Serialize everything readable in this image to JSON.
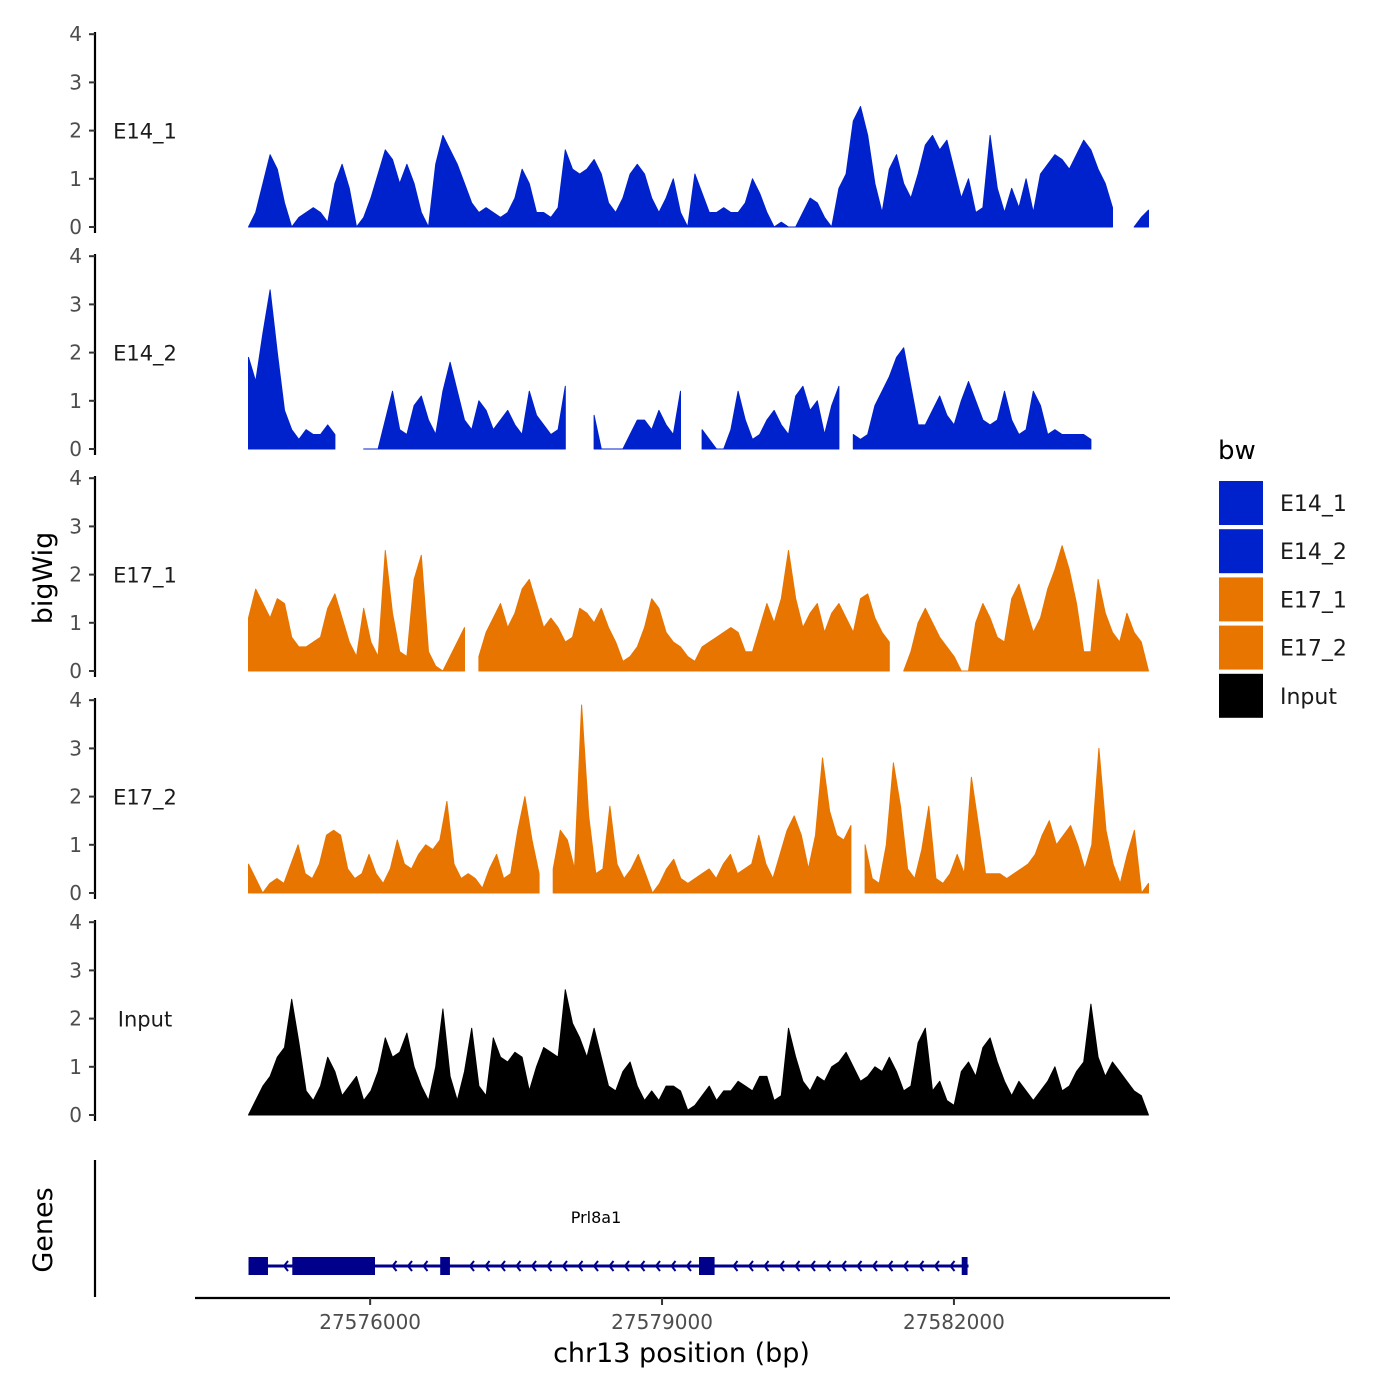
{
  "chart_data": {
    "type": "area",
    "title": "",
    "xlabel": "chr13 position (bp)",
    "ylabel": "bigWig",
    "genes_label": "Genes",
    "xlim": [
      27574200,
      27584200
    ],
    "ylim": [
      0,
      4
    ],
    "x_ticks": [
      27576000,
      27579000,
      27582000
    ],
    "x_tick_labels": [
      "27576000",
      "27579000",
      "27582000"
    ],
    "y_ticks": [
      0,
      1,
      2,
      3,
      4
    ],
    "y_tick_labels": [
      "0",
      "1",
      "2",
      "3",
      "4"
    ],
    "legend": {
      "title": "bw",
      "position": "right",
      "entries": [
        {
          "label": "E14_1",
          "color": "#0022CC"
        },
        {
          "label": "E14_2",
          "color": "#0022CC"
        },
        {
          "label": "E17_1",
          "color": "#E87500"
        },
        {
          "label": "E17_2",
          "color": "#E87500"
        },
        {
          "label": "Input",
          "color": "#000000"
        }
      ]
    },
    "series": [
      {
        "name": "E14_1",
        "color": "#0022CC",
        "x_start": 27574750,
        "x_end": 27584000,
        "values": [
          0,
          0.3,
          0.9,
          1.5,
          1.2,
          0.5,
          0,
          0.2,
          0.3,
          0.4,
          0.3,
          0.1,
          0.9,
          1.3,
          0.8,
          0,
          0.2,
          0.6,
          1.1,
          1.6,
          1.4,
          0.9,
          1.3,
          0.9,
          0.3,
          0,
          1.3,
          1.9,
          1.6,
          1.3,
          0.9,
          0.5,
          0.3,
          0.4,
          0.3,
          0.2,
          0.3,
          0.6,
          1.2,
          0.9,
          0.3,
          0.3,
          0.2,
          0.4,
          1.6,
          1.2,
          1.1,
          1.2,
          1.4,
          1.1,
          0.5,
          0.3,
          0.6,
          1.1,
          1.3,
          1.1,
          0.6,
          0.3,
          0.6,
          1.0,
          0.3,
          0,
          1.1,
          0.7,
          0.3,
          0.3,
          0.4,
          0.3,
          0.3,
          0.5,
          1.0,
          0.7,
          0.3,
          0,
          0.1,
          0,
          0,
          0.3,
          0.6,
          0.5,
          0.2,
          0,
          0.8,
          1.1,
          2.2,
          2.5,
          1.9,
          0.9,
          0.3,
          1.2,
          1.5,
          0.9,
          0.6,
          1.1,
          1.7,
          1.9,
          1.6,
          1.8,
          1.2,
          0.6,
          1.0,
          0.3,
          0.4,
          1.9,
          0.8,
          0.3,
          0.8,
          0.4,
          1.0,
          0.3,
          1.1,
          1.3,
          1.5,
          1.4,
          1.2,
          1.5,
          1.8,
          1.6,
          1.2,
          0.9,
          0.4,
          0.3,
          0,
          0,
          0.2,
          0.35
        ],
        "gaps": [
          [
            27583650,
            27583780
          ]
        ]
      },
      {
        "name": "E14_2",
        "color": "#0022CC",
        "x_start": 27574750,
        "x_end": 27584000,
        "values": [
          1.9,
          1.4,
          2.4,
          3.3,
          2.0,
          0.8,
          0.4,
          0.2,
          0.4,
          0.3,
          0.3,
          0.5,
          0.3,
          0.2,
          0.5,
          0,
          0,
          0,
          0,
          0.6,
          1.2,
          0.4,
          0.3,
          0.9,
          1.1,
          0.6,
          0.3,
          1.2,
          1.8,
          1.2,
          0.6,
          0.4,
          1.0,
          0.8,
          0.4,
          0.6,
          0.8,
          0.5,
          0.3,
          1.2,
          0.7,
          0.5,
          0.3,
          0.4,
          1.3,
          1.1,
          1.2,
          1.2,
          0.7,
          0,
          0,
          0,
          0,
          0.3,
          0.6,
          0.6,
          0.4,
          0.8,
          0.5,
          0.3,
          1.2,
          1.9,
          1.0,
          0.4,
          0.2,
          0,
          0,
          0.4,
          1.2,
          0.6,
          0.2,
          0.3,
          0.6,
          0.8,
          0.5,
          0.3,
          1.1,
          1.3,
          0.8,
          1.0,
          0.3,
          0.9,
          1.3,
          0.7,
          0.3,
          0.2,
          0.3,
          0.9,
          1.2,
          1.5,
          1.9,
          2.1,
          1.3,
          0.5,
          0.5,
          0.8,
          1.1,
          0.7,
          0.5,
          1.0,
          1.4,
          1.0,
          0.6,
          0.5,
          0.6,
          1.2,
          0.6,
          0.3,
          0.4,
          1.2,
          0.9,
          0.3,
          0.4,
          0.3,
          0.3,
          0.3,
          0.3,
          0.2,
          0.2,
          0.2,
          0.2,
          0.1,
          0,
          0,
          0,
          0
        ],
        "gaps": [
          [
            27575270,
            27575310
          ],
          [
            27575710,
            27575920
          ],
          [
            27578070,
            27578290
          ],
          [
            27579230,
            27579390
          ],
          [
            27580880,
            27580920
          ],
          [
            27583450,
            27584100
          ]
        ]
      },
      {
        "name": "E17_1",
        "color": "#E87500",
        "x_start": 27574750,
        "x_end": 27584000,
        "values": [
          1.1,
          1.7,
          1.4,
          1.1,
          1.5,
          1.4,
          0.7,
          0.5,
          0.5,
          0.6,
          0.7,
          1.3,
          1.6,
          1.1,
          0.6,
          0.3,
          1.3,
          0.6,
          0.3,
          2.5,
          1.2,
          0.4,
          0.3,
          1.9,
          2.4,
          0.4,
          0.1,
          0,
          0.3,
          0.6,
          0.9,
          0.5,
          0.3,
          0.8,
          1.1,
          1.4,
          0.9,
          1.2,
          1.7,
          1.9,
          1.4,
          0.9,
          1.1,
          0.9,
          0.6,
          0.7,
          1.3,
          1.2,
          1.0,
          1.3,
          0.9,
          0.6,
          0.2,
          0.3,
          0.5,
          0.9,
          1.5,
          1.3,
          0.8,
          0.6,
          0.5,
          0.3,
          0.2,
          0.5,
          0.6,
          0.7,
          0.8,
          0.9,
          0.8,
          0.4,
          0.4,
          0.9,
          1.4,
          1.0,
          1.5,
          2.5,
          1.5,
          0.9,
          1.2,
          1.4,
          0.8,
          1.2,
          1.4,
          1.1,
          0.8,
          1.5,
          1.6,
          1.1,
          0.8,
          0.6,
          0.4,
          0,
          0.4,
          1.0,
          1.3,
          1.0,
          0.7,
          0.5,
          0.3,
          0,
          0,
          1.0,
          1.4,
          1.1,
          0.7,
          0.6,
          1.5,
          1.8,
          1.3,
          0.8,
          1.1,
          1.7,
          2.1,
          2.6,
          2.1,
          1.4,
          0.4,
          0.4,
          1.9,
          1.2,
          0.8,
          0.6,
          1.2,
          0.8,
          0.6,
          0
        ],
        "gaps": [
          [
            27577000,
            27577060
          ],
          [
            27581350,
            27581480
          ]
        ]
      },
      {
        "name": "E17_2",
        "color": "#E87500",
        "x_start": 27574750,
        "x_end": 27584000,
        "values": [
          0.6,
          0.3,
          0,
          0.2,
          0.3,
          0.2,
          0.6,
          1.0,
          0.4,
          0.3,
          0.6,
          1.2,
          1.3,
          1.2,
          0.5,
          0.3,
          0.4,
          0.8,
          0.4,
          0.2,
          0.5,
          1.1,
          0.6,
          0.5,
          0.8,
          1.0,
          0.9,
          1.1,
          1.9,
          0.6,
          0.3,
          0.4,
          0.3,
          0.1,
          0.5,
          0.8,
          0.3,
          0.4,
          1.3,
          2.0,
          1.1,
          0.4,
          0.3,
          0.5,
          1.3,
          1.1,
          0.5,
          3.9,
          1.6,
          0.4,
          0.5,
          1.8,
          0.6,
          0.3,
          0.5,
          0.8,
          0.4,
          0,
          0.2,
          0.5,
          0.7,
          0.3,
          0.2,
          0.3,
          0.4,
          0.5,
          0.3,
          0.6,
          0.8,
          0.4,
          0.5,
          0.6,
          1.2,
          0.6,
          0.3,
          0.8,
          1.3,
          1.6,
          1.2,
          0.5,
          1.2,
          2.8,
          1.7,
          1.2,
          1.1,
          1.4,
          0.9,
          1.0,
          0.3,
          0.2,
          1.0,
          2.7,
          1.8,
          0.5,
          0.3,
          0.9,
          1.8,
          0.3,
          0.2,
          0.4,
          0.8,
          0.4,
          2.4,
          1.4,
          0.4,
          0.4,
          0.4,
          0.3,
          0.4,
          0.5,
          0.6,
          0.8,
          1.2,
          1.5,
          1.0,
          1.2,
          1.4,
          1.0,
          0.5,
          1.0,
          3.0,
          1.3,
          0.6,
          0.2,
          0.8,
          1.3,
          0,
          0.2
        ],
        "gaps": [
          [
            27577740,
            27577860
          ],
          [
            27581000,
            27581060
          ]
        ]
      },
      {
        "name": "Input",
        "color": "#000000",
        "x_start": 27574750,
        "x_end": 27584000,
        "values": [
          0,
          0.3,
          0.6,
          0.8,
          1.2,
          1.4,
          2.4,
          1.5,
          0.5,
          0.3,
          0.6,
          1.2,
          0.9,
          0.4,
          0.6,
          0.8,
          0.3,
          0.5,
          0.9,
          1.6,
          1.2,
          1.3,
          1.7,
          1.0,
          0.6,
          0.3,
          1.0,
          2.2,
          0.8,
          0.3,
          0.9,
          1.8,
          0.6,
          0.4,
          1.6,
          1.2,
          1.1,
          1.3,
          1.2,
          0.5,
          1.0,
          1.4,
          1.3,
          1.2,
          2.6,
          1.9,
          1.6,
          1.2,
          1.8,
          1.2,
          0.6,
          0.5,
          0.9,
          1.1,
          0.6,
          0.3,
          0.5,
          0.3,
          0.6,
          0.6,
          0.5,
          0.1,
          0.2,
          0.4,
          0.6,
          0.3,
          0.5,
          0.5,
          0.7,
          0.6,
          0.5,
          0.8,
          0.8,
          0.3,
          0.4,
          1.8,
          1.2,
          0.7,
          0.5,
          0.8,
          0.7,
          1.0,
          1.1,
          1.3,
          1.0,
          0.7,
          0.8,
          1.0,
          0.9,
          1.2,
          0.9,
          0.5,
          0.6,
          1.5,
          1.8,
          0.5,
          0.7,
          0.3,
          0.2,
          0.9,
          1.1,
          0.8,
          1.4,
          1.6,
          1.1,
          0.7,
          0.4,
          0.7,
          0.5,
          0.3,
          0.5,
          0.7,
          1.0,
          0.5,
          0.6,
          0.9,
          1.1,
          2.3,
          1.2,
          0.8,
          1.1,
          0.9,
          0.7,
          0.5,
          0.4,
          0
        ],
        "gaps": []
      }
    ],
    "gene_track": {
      "gene_name": "Prl8a1",
      "color": "#00008B",
      "strand": "-",
      "start": 27574750,
      "end": 27582150,
      "exons": [
        [
          27574750,
          27574950
        ],
        [
          27575200,
          27576050
        ],
        [
          27576720,
          27576820
        ],
        [
          27579380,
          27579540
        ],
        [
          27582080,
          27582140
        ]
      ]
    }
  }
}
